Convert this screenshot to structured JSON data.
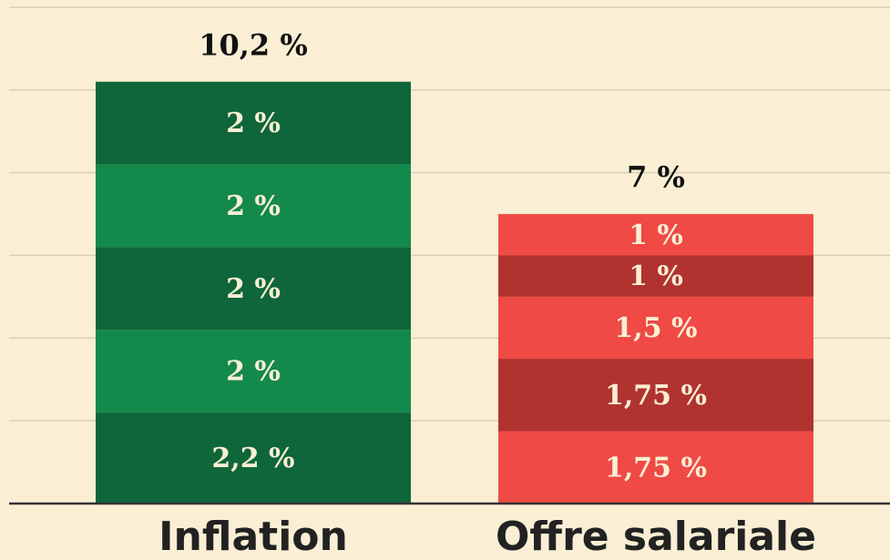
{
  "chart_data": {
    "type": "stacked_bar",
    "categories": [
      "Inflation",
      "Offre salariale"
    ],
    "values": [
      [
        2.2,
        2,
        2,
        2,
        2
      ],
      [
        1.75,
        1.75,
        1.5,
        1,
        1
      ]
    ],
    "value_labels": [
      [
        "2,2 %",
        "2 %",
        "2 %",
        "2 %",
        "2 %"
      ],
      [
        "1,75 %",
        "1,75 %",
        "1,5 %",
        "1 %",
        "1 %"
      ]
    ],
    "colors": [
      [
        "#0e663a",
        "#13894c",
        "#0e663a",
        "#13894c",
        "#0e663a"
      ],
      [
        "#ef4a46",
        "#b03330",
        "#ef4a46",
        "#b03330",
        "#ef4a46"
      ]
    ],
    "totals": [
      10.2,
      7
    ],
    "total_labels": [
      "10,2 %",
      "7 %"
    ],
    "ylim": [
      0,
      12
    ],
    "yticks": [
      0,
      2,
      4,
      6,
      8,
      10,
      12
    ],
    "grid": true
  }
}
